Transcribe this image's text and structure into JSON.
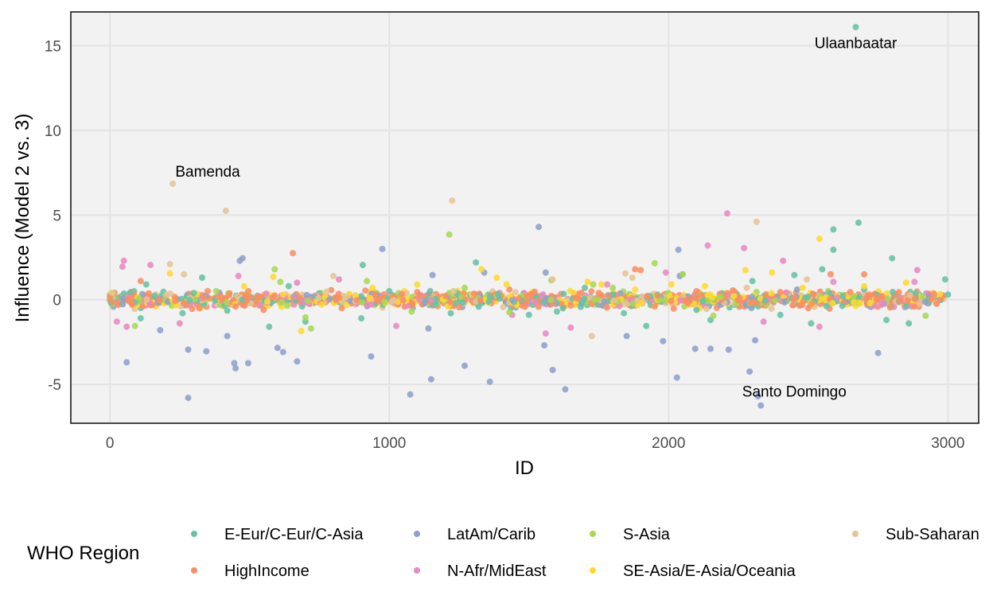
{
  "chart_data": {
    "type": "scatter",
    "title": "",
    "xlabel": "ID",
    "ylabel": "Influence (Model 2 vs. 3)",
    "xlim": [
      -140,
      3110
    ],
    "ylim": [
      -7.3,
      17.0
    ],
    "xticks": [
      0,
      1000,
      2000,
      3000
    ],
    "xtick_labels": [
      "0",
      "1000",
      "2000",
      "3000"
    ],
    "yticks": [
      -5,
      0,
      5,
      10,
      15
    ],
    "ytick_labels": [
      "-5",
      "0",
      "5",
      "10",
      "15"
    ],
    "grid": true,
    "legend": {
      "title": "WHO Region",
      "position": "bottom",
      "entries": [
        {
          "label": "E-Eur/C-Eur/C-Asia",
          "color": "#66c2a5"
        },
        {
          "label": "HighIncome",
          "color": "#fc8d62"
        },
        {
          "label": "LatAm/Carib",
          "color": "#8da0cb"
        },
        {
          "label": "N-Afr/MidEast",
          "color": "#e78ac3"
        },
        {
          "label": "S-Asia",
          "color": "#a6d854"
        },
        {
          "label": "SE-Asia/E-Asia/Oceania",
          "color": "#ffd92f"
        },
        {
          "label": "Sub-Saharan",
          "color": "#e5c494"
        }
      ]
    },
    "annotations": [
      {
        "text": "Ulaanbaatar",
        "x": 2670,
        "y": 15.2
      },
      {
        "text": "Bamenda",
        "x": 350,
        "y": 7.6
      },
      {
        "text": "Santo Domingo",
        "x": 2450,
        "y": -5.4
      }
    ],
    "series": [
      {
        "name": "E-Eur/C-Eur/C-Asia",
        "color": "#66c2a5",
        "points": [
          [
            2670,
            16.1
          ],
          [
            2590,
            4.15
          ],
          [
            2680,
            4.55
          ],
          [
            2590,
            2.95
          ],
          [
            1310,
            2.2
          ],
          [
            905,
            2.05
          ],
          [
            2800,
            2.45
          ],
          [
            2550,
            1.8
          ],
          [
            2450,
            1.45
          ],
          [
            2990,
            1.2
          ],
          [
            130,
            0.9
          ],
          [
            330,
            1.3
          ],
          [
            640,
            0.8
          ],
          [
            420,
            -0.65
          ],
          [
            1220,
            -0.8
          ],
          [
            1920,
            -1.55
          ],
          [
            2510,
            -1.4
          ],
          [
            110,
            -1.1
          ],
          [
            570,
            -1.6
          ],
          [
            900,
            -1.1
          ],
          [
            1840,
            -0.8
          ],
          [
            2150,
            -1.2
          ],
          [
            2780,
            -1.2
          ],
          [
            2860,
            -1.4
          ],
          [
            1500,
            -0.9
          ],
          [
            700,
            -1.3
          ],
          [
            2300,
            1.1
          ],
          [
            1000,
            0.5
          ],
          [
            3000,
            0.3
          ],
          [
            2100,
            -0.6
          ],
          [
            1700,
            0.7
          ],
          [
            1600,
            -0.7
          ],
          [
            300,
            0.4
          ],
          [
            2700,
            0.6
          ],
          [
            1800,
            0.3
          ],
          [
            260,
            -0.8
          ],
          [
            2050,
            1.5
          ],
          [
            2400,
            -0.9
          ]
        ]
      },
      {
        "name": "HighIncome",
        "color": "#fc8d62",
        "points": [
          [
            655,
            2.75
          ],
          [
            2700,
            1.5
          ],
          [
            1880,
            1.8
          ],
          [
            1900,
            1.75
          ],
          [
            2580,
            1.5
          ],
          [
            110,
            1.1
          ],
          [
            550,
            -0.6
          ],
          [
            1430,
            0.6
          ],
          [
            2230,
            0.55
          ],
          [
            830,
            -0.5
          ],
          [
            1950,
            -0.4
          ],
          [
            350,
            0.5
          ],
          [
            2500,
            -0.5
          ],
          [
            1100,
            0.45
          ],
          [
            2950,
            0.35
          ],
          [
            1650,
            -0.35
          ],
          [
            2880,
            -0.4
          ],
          [
            80,
            -0.3
          ],
          [
            1250,
            -0.45
          ],
          [
            2100,
            0.5
          ],
          [
            1750,
            0.4
          ],
          [
            2650,
            0.45
          ],
          [
            450,
            -0.4
          ],
          [
            950,
            0.3
          ],
          [
            2400,
            0.45
          ]
        ]
      },
      {
        "name": "LatAm/Carib",
        "color": "#8da0cb",
        "points": [
          [
            2330,
            -6.25
          ],
          [
            2320,
            -5.7
          ],
          [
            280,
            -5.8
          ],
          [
            1075,
            -5.6
          ],
          [
            1150,
            -4.7
          ],
          [
            1360,
            -4.85
          ],
          [
            1630,
            -5.3
          ],
          [
            2030,
            -4.6
          ],
          [
            2290,
            -4.25
          ],
          [
            60,
            -3.7
          ],
          [
            445,
            -3.75
          ],
          [
            495,
            -3.75
          ],
          [
            450,
            -4.05
          ],
          [
            280,
            -2.95
          ],
          [
            345,
            -3.05
          ],
          [
            600,
            -2.85
          ],
          [
            620,
            -3.1
          ],
          [
            670,
            -3.65
          ],
          [
            935,
            -3.35
          ],
          [
            1270,
            -3.9
          ],
          [
            1585,
            -4.15
          ],
          [
            1555,
            -2.7
          ],
          [
            2095,
            -2.9
          ],
          [
            2150,
            -2.9
          ],
          [
            2215,
            -2.95
          ],
          [
            2310,
            -2.4
          ],
          [
            2750,
            -3.15
          ],
          [
            1980,
            -2.45
          ],
          [
            1850,
            -2.15
          ],
          [
            420,
            -2.15
          ],
          [
            1535,
            4.3
          ],
          [
            975,
            3.0
          ],
          [
            2035,
            2.95
          ],
          [
            465,
            2.3
          ],
          [
            475,
            2.45
          ],
          [
            1155,
            1.45
          ],
          [
            1340,
            1.6
          ],
          [
            1560,
            1.6
          ],
          [
            2040,
            1.4
          ],
          [
            2460,
            0.6
          ],
          [
            180,
            -1.8
          ],
          [
            1140,
            -1.7
          ]
        ]
      },
      {
        "name": "N-Afr/MidEast",
        "color": "#e78ac3",
        "points": [
          [
            2210,
            5.1
          ],
          [
            2270,
            3.05
          ],
          [
            2410,
            2.3
          ],
          [
            2140,
            3.2
          ],
          [
            1990,
            1.6
          ],
          [
            50,
            2.3
          ],
          [
            45,
            1.95
          ],
          [
            145,
            2.05
          ],
          [
            460,
            1.4
          ],
          [
            670,
            1.0
          ],
          [
            820,
            1.2
          ],
          [
            2890,
            1.75
          ],
          [
            2880,
            1.05
          ],
          [
            60,
            -1.6
          ],
          [
            25,
            -1.3
          ],
          [
            250,
            -1.4
          ],
          [
            1025,
            -1.55
          ],
          [
            1650,
            -1.65
          ],
          [
            1560,
            -2.0
          ],
          [
            2540,
            -1.6
          ],
          [
            1440,
            -0.9
          ],
          [
            2590,
            1.05
          ],
          [
            2340,
            -1.3
          ],
          [
            1780,
            0.9
          ]
        ]
      },
      {
        "name": "S-Asia",
        "color": "#a6d854",
        "points": [
          [
            1215,
            3.85
          ],
          [
            1950,
            2.15
          ],
          [
            590,
            1.8
          ],
          [
            610,
            1.05
          ],
          [
            920,
            1.1
          ],
          [
            1580,
            1.15
          ],
          [
            2050,
            1.5
          ],
          [
            1730,
            0.9
          ],
          [
            1270,
            0.7
          ],
          [
            90,
            -1.55
          ],
          [
            720,
            -1.7
          ],
          [
            700,
            -1.05
          ],
          [
            1430,
            -0.75
          ],
          [
            1080,
            -0.7
          ],
          [
            2160,
            -0.95
          ],
          [
            2920,
            -0.95
          ],
          [
            1800,
            0.7
          ],
          [
            380,
            0.5
          ]
        ]
      },
      {
        "name": "SE-Asia/E-Asia/Oceania",
        "color": "#ffd92f",
        "points": [
          [
            2540,
            3.6
          ],
          [
            2275,
            1.75
          ],
          [
            2370,
            1.6
          ],
          [
            1330,
            1.8
          ],
          [
            215,
            1.55
          ],
          [
            585,
            1.35
          ],
          [
            1420,
            0.9
          ],
          [
            1710,
            1.05
          ],
          [
            1760,
            0.9
          ],
          [
            1385,
            1.3
          ],
          [
            685,
            -1.85
          ],
          [
            2850,
            1.0
          ],
          [
            2700,
            0.8
          ],
          [
            1100,
            0.9
          ],
          [
            2130,
            0.8
          ],
          [
            940,
            0.7
          ],
          [
            2010,
            0.9
          ],
          [
            480,
            0.8
          ],
          [
            1880,
            0.6
          ],
          [
            2480,
            0.7
          ]
        ]
      },
      {
        "name": "Sub-Saharan",
        "color": "#e5c494",
        "points": [
          [
            225,
            6.85
          ],
          [
            415,
            5.25
          ],
          [
            1225,
            5.85
          ],
          [
            2315,
            4.6
          ],
          [
            215,
            2.1
          ],
          [
            265,
            1.5
          ],
          [
            1870,
            1.3
          ],
          [
            1845,
            1.55
          ],
          [
            2495,
            1.2
          ],
          [
            1585,
            1.2
          ],
          [
            1725,
            -2.15
          ],
          [
            800,
            1.4
          ],
          [
            10,
            0.4
          ],
          [
            1230,
            0.5
          ],
          [
            2280,
            0.7
          ]
        ]
      }
    ]
  }
}
